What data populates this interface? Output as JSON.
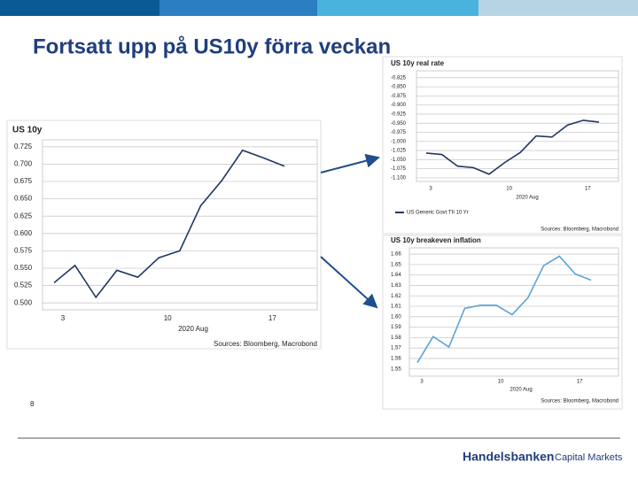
{
  "title": "Fortsatt upp på US10y förra veckan",
  "page_number": "8",
  "logo": {
    "brand": "Handelsbanken",
    "unit": "Capital Markets"
  },
  "chart_data": [
    {
      "type": "line",
      "title": "US 10y",
      "x_label": "2020 Aug",
      "source": "Sources: Bloomberg, Macrobond",
      "categories": [
        "3",
        null,
        null,
        null,
        null,
        "10",
        null,
        null,
        null,
        null,
        "17",
        null
      ],
      "values": [
        0.529,
        0.554,
        0.508,
        0.547,
        0.537,
        0.565,
        0.575,
        0.64,
        0.676,
        0.72,
        0.709,
        0.697
      ],
      "color": "#1f3864",
      "grid": true,
      "ylim": [
        0.49,
        0.735
      ],
      "yticks": [
        {
          "value": 0.5,
          "label": "0.500"
        },
        0.525,
        {
          "value": 0.55,
          "label": "0.550"
        },
        0.575,
        {
          "value": 0.6,
          "label": "0.600"
        },
        0.625,
        {
          "value": 0.65,
          "label": "0.650"
        },
        0.675,
        {
          "value": 0.7,
          "label": "0.700"
        },
        0.725
      ]
    },
    {
      "type": "line",
      "title": "US 10y real rate",
      "x_label": "2020 Aug",
      "source": "Sources: Bloomberg, Macrobond",
      "categories": [
        "3",
        null,
        null,
        null,
        null,
        "10",
        null,
        null,
        null,
        null,
        "17",
        null
      ],
      "series": [
        {
          "name": "US Generic Govt TII 10 Yr",
          "color": "#1f3864",
          "values": [
            -1.032,
            -1.036,
            -1.068,
            -1.072,
            -1.09,
            -1.058,
            -1.03,
            -0.985,
            -0.988,
            -0.955,
            -0.942,
            -0.947
          ]
        }
      ],
      "grid": true,
      "ylim": [
        -1.11,
        -0.806
      ],
      "yticks": [
        {
          "value": -1.1,
          "label": "-1.100"
        },
        -1.075,
        {
          "value": -1.05,
          "label": "-1.050"
        },
        -1.025,
        {
          "value": -1,
          "label": "-1.000"
        },
        -0.975,
        {
          "value": -0.95,
          "label": "-0.950"
        },
        -0.925,
        {
          "value": -0.9,
          "label": "-0.900"
        },
        -0.875,
        {
          "value": -0.85,
          "label": "-0.850"
        },
        -0.825
      ]
    },
    {
      "type": "line",
      "title": "US 10y breakeven inflation",
      "x_label": "2020 Aug",
      "source": "Sources: Bloomberg, Macrobond",
      "categories": [
        "3",
        null,
        null,
        null,
        null,
        "10",
        null,
        null,
        null,
        null,
        "17",
        null
      ],
      "values": [
        1.556,
        1.581,
        1.571,
        1.608,
        1.611,
        1.611,
        1.602,
        1.618,
        1.649,
        1.658,
        1.641,
        1.635
      ],
      "color": "#5ba3d9",
      "grid": true,
      "ylim": [
        1.543,
        1.666
      ],
      "yticks": [
        1.55,
        1.56,
        1.57,
        1.58,
        1.59,
        {
          "value": 1.6,
          "label": "1.60"
        },
        1.61,
        1.62,
        1.63,
        1.64,
        1.65,
        1.66
      ]
    }
  ]
}
